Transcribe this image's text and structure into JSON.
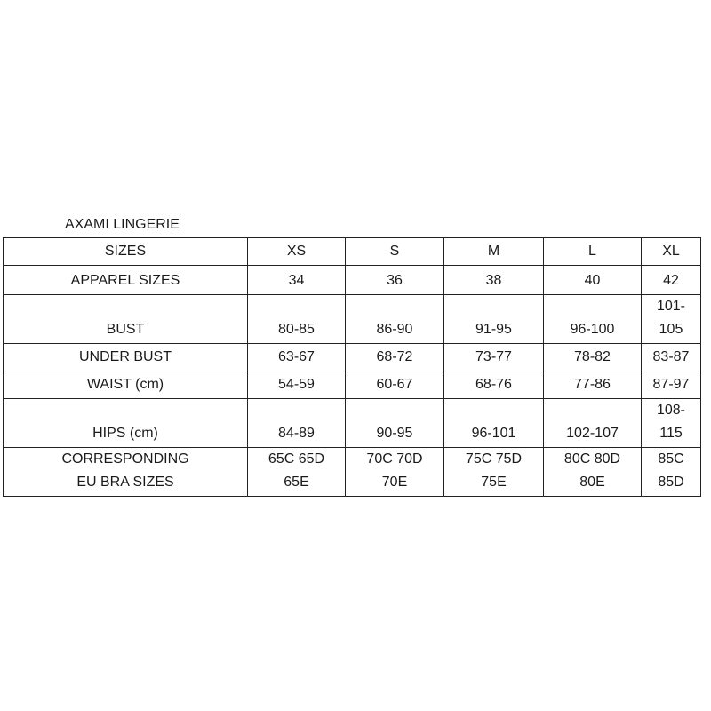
{
  "title": "AXAMI LINGERIE",
  "header": [
    "SIZES",
    "XS",
    "S",
    "M",
    "L",
    "XL"
  ],
  "rows": [
    {
      "label": [
        "APPAREL SIZES"
      ],
      "cells": [
        [
          "34"
        ],
        [
          "36"
        ],
        [
          "38"
        ],
        [
          "40"
        ],
        [
          "42"
        ]
      ]
    },
    {
      "label": [
        "BUST"
      ],
      "cells": [
        [
          "80-85"
        ],
        [
          "86-90"
        ],
        [
          "91-95"
        ],
        [
          "96-100"
        ],
        [
          "101-",
          "105"
        ]
      ]
    },
    {
      "label": [
        "UNDER BUST"
      ],
      "cells": [
        [
          "63-67"
        ],
        [
          "68-72"
        ],
        [
          "73-77"
        ],
        [
          "78-82"
        ],
        [
          "83-87"
        ]
      ]
    },
    {
      "label": [
        "WAIST (cm)"
      ],
      "cells": [
        [
          "54-59"
        ],
        [
          "60-67"
        ],
        [
          "68-76"
        ],
        [
          "77-86"
        ],
        [
          "87-97"
        ]
      ]
    },
    {
      "label": [
        "HIPS (cm)"
      ],
      "cells": [
        [
          "84-89"
        ],
        [
          "90-95"
        ],
        [
          "96-101"
        ],
        [
          "102-107"
        ],
        [
          "108-",
          "115"
        ]
      ]
    },
    {
      "label": [
        "CORRESPONDING",
        "EU  BRA  SIZES"
      ],
      "cells": [
        [
          "65C 65D",
          "65E"
        ],
        [
          "70C 70D",
          "70E"
        ],
        [
          "75C 75D",
          "75E"
        ],
        [
          "80C 80D",
          "80E"
        ],
        [
          "85C",
          "85D"
        ]
      ]
    }
  ]
}
